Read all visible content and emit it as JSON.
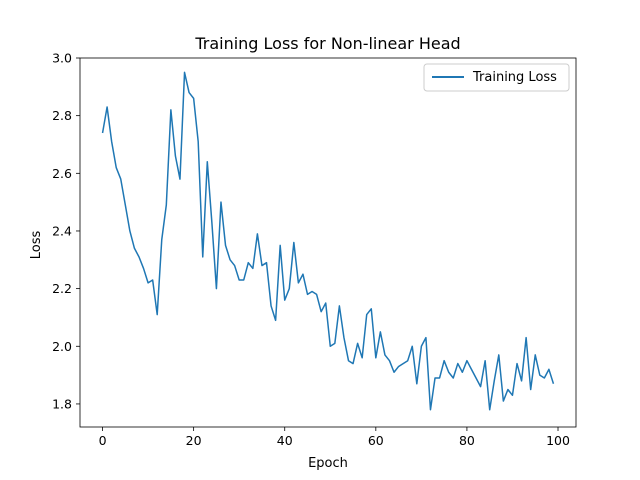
{
  "chart_data": {
    "type": "line",
    "title": "Training Loss for Non-linear Head",
    "xlabel": "Epoch",
    "ylabel": "Loss",
    "xlim": [
      -4.95,
      103.95
    ],
    "ylim": [
      1.72,
      3.0
    ],
    "xticks": [
      0,
      20,
      40,
      60,
      80,
      100
    ],
    "yticks": [
      1.8,
      2.0,
      2.2,
      2.4,
      2.6,
      2.8,
      3.0
    ],
    "xtick_labels": [
      "0",
      "20",
      "40",
      "60",
      "80",
      "100"
    ],
    "ytick_labels": [
      "1.8",
      "2.0",
      "2.2",
      "2.4",
      "2.6",
      "2.8",
      "3.0"
    ],
    "grid": false,
    "legend_position": "top-right",
    "series": [
      {
        "name": "Training Loss",
        "color": "#1f77b4",
        "x": [
          0,
          1,
          2,
          3,
          4,
          5,
          6,
          7,
          8,
          9,
          10,
          11,
          12,
          13,
          14,
          15,
          16,
          17,
          18,
          19,
          20,
          21,
          22,
          23,
          24,
          25,
          26,
          27,
          28,
          29,
          30,
          31,
          32,
          33,
          34,
          35,
          36,
          37,
          38,
          39,
          40,
          41,
          42,
          43,
          44,
          45,
          46,
          47,
          48,
          49,
          50,
          51,
          52,
          53,
          54,
          55,
          56,
          57,
          58,
          59,
          60,
          61,
          62,
          63,
          64,
          65,
          66,
          67,
          68,
          69,
          70,
          71,
          72,
          73,
          74,
          75,
          76,
          77,
          78,
          79,
          80,
          81,
          82,
          83,
          84,
          85,
          86,
          87,
          88,
          89,
          90,
          91,
          92,
          93,
          94,
          95,
          96,
          97,
          98,
          99
        ],
        "values": [
          2.74,
          2.83,
          2.71,
          2.62,
          2.58,
          2.49,
          2.4,
          2.34,
          2.31,
          2.27,
          2.22,
          2.23,
          2.11,
          2.37,
          2.49,
          2.82,
          2.66,
          2.58,
          2.95,
          2.88,
          2.86,
          2.71,
          2.31,
          2.64,
          2.43,
          2.2,
          2.5,
          2.35,
          2.3,
          2.28,
          2.23,
          2.23,
          2.29,
          2.27,
          2.39,
          2.28,
          2.29,
          2.14,
          2.09,
          2.35,
          2.16,
          2.2,
          2.36,
          2.22,
          2.25,
          2.18,
          2.19,
          2.18,
          2.12,
          2.15,
          2.0,
          2.01,
          2.14,
          2.03,
          1.95,
          1.94,
          2.01,
          1.96,
          2.11,
          2.13,
          1.96,
          2.05,
          1.97,
          1.95,
          1.91,
          1.93,
          1.94,
          1.95,
          2.0,
          1.87,
          2.0,
          2.03,
          1.78,
          1.89,
          1.89,
          1.95,
          1.91,
          1.89,
          1.94,
          1.91,
          1.95,
          1.92,
          1.89,
          1.86,
          1.95,
          1.78,
          1.88,
          1.97,
          1.81,
          1.85,
          1.83,
          1.94,
          1.88,
          2.03,
          1.85,
          1.97,
          1.9,
          1.89,
          1.92,
          1.87
        ]
      }
    ]
  }
}
